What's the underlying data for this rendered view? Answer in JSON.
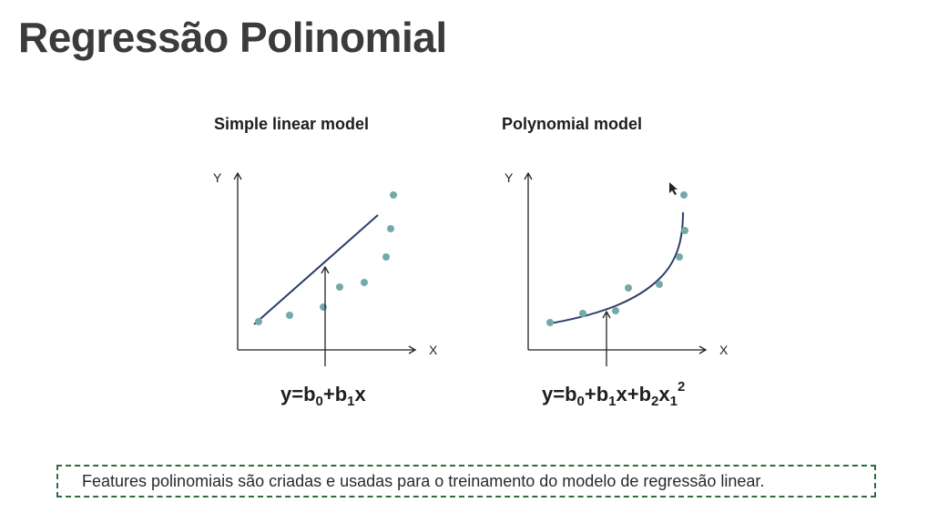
{
  "title": "Regressão Polinomial",
  "panels": {
    "linear": {
      "title": "Simple linear model",
      "y_axis_label": "Y",
      "x_axis_label": "X",
      "equation": {
        "base": "y=b",
        "s1": "0",
        "plus1": "+b",
        "s2": "1",
        "tail": "x"
      },
      "points": [
        [
          1,
          1
        ],
        [
          2,
          1.3
        ],
        [
          3,
          2
        ],
        [
          3.3,
          4.2
        ],
        [
          4.2,
          4.5
        ],
        [
          4.9,
          7.3
        ],
        [
          5.1,
          10.5
        ],
        [
          5.1,
          12.6
        ]
      ]
    },
    "polynomial": {
      "title": "Polynomial model",
      "y_axis_label": "Y",
      "x_axis_label": "X",
      "equation": {
        "base": "y=b",
        "s1": "0",
        "plus1": "+b",
        "s2": "1",
        "mid": "x+b",
        "s3": "2",
        "mid2": "x",
        "s4": "1",
        "sup": "2"
      },
      "points": [
        [
          1,
          1
        ],
        [
          2,
          1.3
        ],
        [
          3,
          2
        ],
        [
          3.3,
          4.2
        ],
        [
          4.2,
          4.5
        ],
        [
          4.9,
          7.3
        ],
        [
          5.1,
          10.5
        ],
        [
          5.1,
          12.6
        ]
      ]
    }
  },
  "note": "Features polinomiais são criadas e usadas para o treinamento do modelo de regressão linear.",
  "colors": {
    "point": "#74a9a9",
    "line": "#2c3e6a",
    "axis": "#222222",
    "note_border": "#2f6b3e"
  }
}
